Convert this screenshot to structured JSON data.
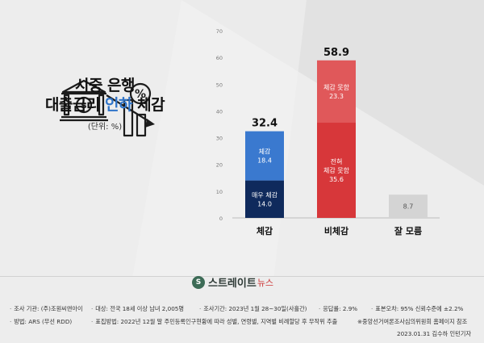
{
  "title": {
    "line1": "시중 은행",
    "line2_a": "대출금리 ",
    "line2_b": "인하",
    "line2_c": " 체감",
    "unit": "(단위: %)"
  },
  "colors": {
    "feel_strong": "#0f2a5c",
    "feel": "#3a79cf",
    "not_at_all": "#d7373a",
    "not_much": "#e0585a",
    "dont_know": "#d4d4d4",
    "highlight": "#2f74c9"
  },
  "chart_data": {
    "type": "bar",
    "stacked": true,
    "categories": [
      "체감",
      "비체감",
      "잘 모름"
    ],
    "ylim": [
      0,
      70
    ],
    "yticks": [
      0,
      10,
      20,
      30,
      40,
      50,
      60,
      70
    ],
    "totals": [
      "32.4",
      "58.9",
      ""
    ],
    "grid": false,
    "series": [
      {
        "name": "매우 체감",
        "label_lines": [
          "매우 체감",
          "14.0"
        ],
        "values": [
          14.0,
          0,
          0
        ],
        "color": "#0f2a5c"
      },
      {
        "name": "체감",
        "label_lines": [
          "체감",
          "18.4"
        ],
        "values": [
          18.4,
          0,
          0
        ],
        "color": "#3a79cf"
      },
      {
        "name": "전혀 체감 못함",
        "label_lines": [
          "전혀",
          "체감 못함",
          "35.6"
        ],
        "values": [
          0,
          35.6,
          0
        ],
        "color": "#d7373a"
      },
      {
        "name": "체감 못함",
        "label_lines": [
          "체감 못함",
          "23.3"
        ],
        "values": [
          0,
          23.3,
          0
        ],
        "color": "#e0585a"
      },
      {
        "name": "잘 모름",
        "label_lines": [
          "8.7"
        ],
        "values": [
          0,
          0,
          8.7
        ],
        "color": "#d4d4d4"
      }
    ]
  },
  "logo": {
    "main": "스트레이트",
    "sub": "뉴스"
  },
  "footer": {
    "row1": [
      "조사 기관: (주)조원씨앤아이",
      "대상: 전국 18세 이상 남녀 2,005명",
      "조사기간: 2023년 1월 28~30일(사흘간)",
      "응답률: 2.9%",
      "표본오차: 95% 신뢰수준에 ±2.2%"
    ],
    "row2": [
      "방법: ARS (무선 RDD)",
      "표집방법: 2022년 12월 말 주민등록인구현황에 따라 성별, 연령별, 지역별 비례할당 후 무작위 추출"
    ],
    "note": "※중앙선거여론조사심의위원회 홈페이지 참조",
    "credit": "2023.01.31 김수하 인턴기자"
  }
}
